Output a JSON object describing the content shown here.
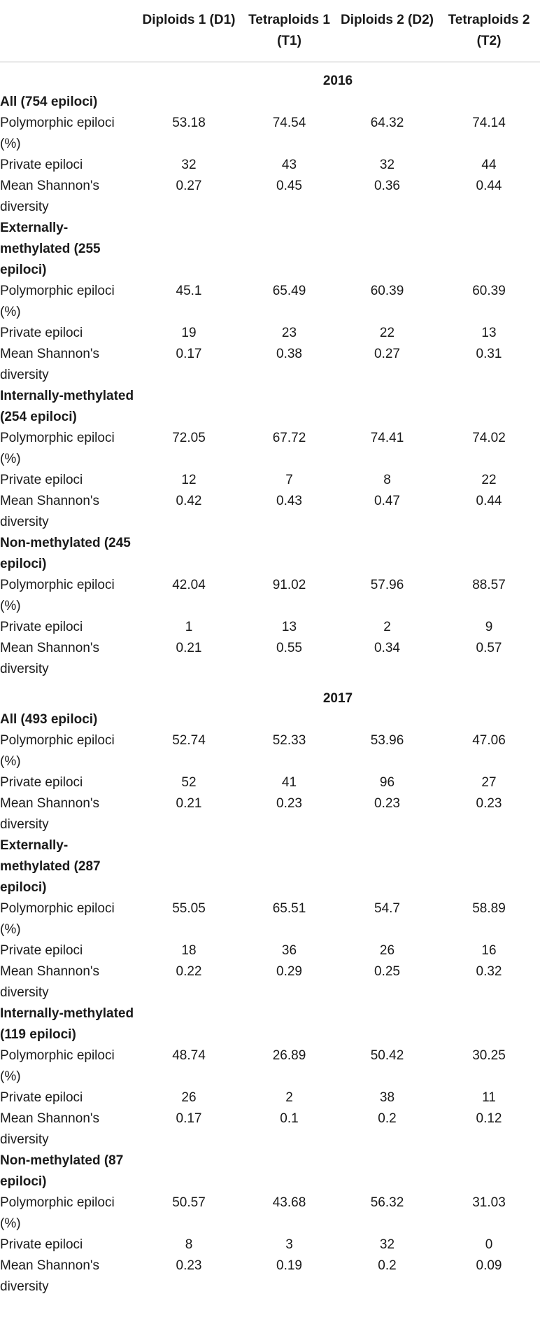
{
  "header": {
    "columns": [
      "",
      "Diploids 1 (D1)",
      "Tetraploids 1 (T1)",
      "Diploids 2 (D2)",
      "Tetraploids 2 (T2)"
    ]
  },
  "sections": [
    {
      "year": "2016",
      "groups": [
        {
          "title": "All (754 epiloci)",
          "rows": [
            {
              "label": "Polymorphic epiloci (%)",
              "values": [
                "53.18",
                "74.54",
                "64.32",
                "74.14"
              ]
            },
            {
              "label": "Private epiloci",
              "values": [
                "32",
                "43",
                "32",
                "44"
              ]
            },
            {
              "label": "Mean Shannon's diversity",
              "values": [
                "0.27",
                "0.45",
                "0.36",
                "0.44"
              ]
            }
          ]
        },
        {
          "title": "Externally-methylated (255 epiloci)",
          "rows": [
            {
              "label": "Polymorphic epiloci (%)",
              "values": [
                "45.1",
                "65.49",
                "60.39",
                "60.39"
              ]
            },
            {
              "label": "Private epiloci",
              "values": [
                "19",
                "23",
                "22",
                "13"
              ]
            },
            {
              "label": "Mean Shannon's diversity",
              "values": [
                "0.17",
                "0.38",
                "0.27",
                "0.31"
              ]
            }
          ]
        },
        {
          "title": "Internally-methylated (254 epiloci)",
          "rows": [
            {
              "label": "Polymorphic epiloci (%)",
              "values": [
                "72.05",
                "67.72",
                "74.41",
                "74.02"
              ]
            },
            {
              "label": "Private epiloci",
              "values": [
                "12",
                "7",
                "8",
                "22"
              ]
            },
            {
              "label": "Mean Shannon's diversity",
              "values": [
                "0.42",
                "0.43",
                "0.47",
                "0.44"
              ]
            }
          ]
        },
        {
          "title": "Non-methylated (245 epiloci)",
          "rows": [
            {
              "label": "Polymorphic epiloci (%)",
              "values": [
                "42.04",
                "91.02",
                "57.96",
                "88.57"
              ]
            },
            {
              "label": "Private epiloci",
              "values": [
                "1",
                "13",
                "2",
                "9"
              ]
            },
            {
              "label": "Mean Shannon's diversity",
              "values": [
                "0.21",
                "0.55",
                "0.34",
                "0.57"
              ]
            }
          ]
        }
      ]
    },
    {
      "year": "2017",
      "groups": [
        {
          "title": "All (493 epiloci)",
          "rows": [
            {
              "label": "Polymorphic epiloci (%)",
              "values": [
                "52.74",
                "52.33",
                "53.96",
                "47.06"
              ]
            },
            {
              "label": "Private epiloci",
              "values": [
                "52",
                "41",
                "96",
                "27"
              ]
            },
            {
              "label": "Mean Shannon's diversity",
              "values": [
                "0.21",
                "0.23",
                "0.23",
                "0.23"
              ]
            }
          ]
        },
        {
          "title": "Externally-methylated (287 epiloci)",
          "rows": [
            {
              "label": "Polymorphic epiloci (%)",
              "values": [
                "55.05",
                "65.51",
                "54.7",
                "58.89"
              ]
            },
            {
              "label": "Private epiloci",
              "values": [
                "18",
                "36",
                "26",
                "16"
              ]
            },
            {
              "label": "Mean Shannon's diversity",
              "values": [
                "0.22",
                "0.29",
                "0.25",
                "0.32"
              ]
            }
          ]
        },
        {
          "title": "Internally-methylated (119 epiloci)",
          "rows": [
            {
              "label": "Polymorphic epiloci (%)",
              "values": [
                "48.74",
                "26.89",
                "50.42",
                "30.25"
              ]
            },
            {
              "label": "Private epiloci",
              "values": [
                "26",
                "2",
                "38",
                "11"
              ]
            },
            {
              "label": "Mean Shannon's diversity",
              "values": [
                "0.17",
                "0.1",
                "0.2",
                "0.12"
              ]
            }
          ]
        },
        {
          "title": "Non-methylated (87 epiloci)",
          "rows": [
            {
              "label": "Polymorphic epiloci (%)",
              "values": [
                "50.57",
                "43.68",
                "56.32",
                "31.03"
              ]
            },
            {
              "label": "Private epiloci",
              "values": [
                "8",
                "3",
                "32",
                "0"
              ]
            },
            {
              "label": "Mean Shannon's diversity",
              "values": [
                "0.23",
                "0.19",
                "0.2",
                "0.09"
              ]
            }
          ]
        }
      ]
    }
  ]
}
